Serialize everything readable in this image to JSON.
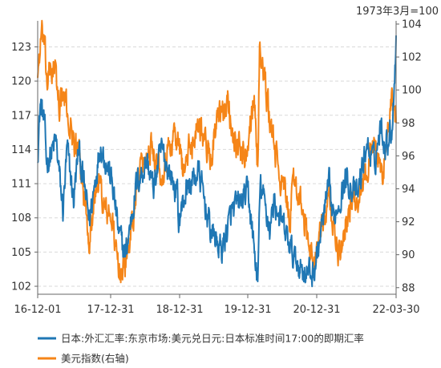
{
  "chart_data": {
    "type": "line",
    "note_top_right": "1973年3月=100",
    "x_ticks": [
      "16-12-01",
      "17-12-31",
      "18-12-31",
      "19-12-31",
      "20-12-31",
      "22-03-30"
    ],
    "x_range": [
      "2016-12-01",
      "2022-03-30"
    ],
    "y_left": {
      "ticks": [
        102,
        105,
        108,
        111,
        114,
        117,
        120,
        123
      ],
      "range": [
        101.3,
        125
      ]
    },
    "y_right": {
      "ticks": [
        88,
        90,
        92,
        94,
        96,
        98,
        100,
        102,
        104
      ],
      "range": [
        87.6,
        104
      ]
    },
    "grid": "horizontal-dashed",
    "legend_position": "bottom",
    "series": [
      {
        "name": "日本:外汇汇率:东京市场:美元兑日元:日本标准时间17:00的即期汇率",
        "axis": "left",
        "color": "#1f77b4",
        "points": [
          [
            "2016-12-01",
            113.8
          ],
          [
            "2016-12-15",
            118.0
          ],
          [
            "2017-01-05",
            116.5
          ],
          [
            "2017-01-18",
            113.0
          ],
          [
            "2017-02-10",
            113.5
          ],
          [
            "2017-03-10",
            114.8
          ],
          [
            "2017-04-17",
            108.6
          ],
          [
            "2017-05-10",
            114.0
          ],
          [
            "2017-06-14",
            109.5
          ],
          [
            "2017-07-10",
            114.0
          ],
          [
            "2017-09-08",
            107.8
          ],
          [
            "2017-11-06",
            114.5
          ],
          [
            "2017-12-15",
            112.5
          ],
          [
            "2018-01-10",
            111.0
          ],
          [
            "2018-02-15",
            106.5
          ],
          [
            "2018-03-23",
            104.7
          ],
          [
            "2018-05-21",
            111.0
          ],
          [
            "2018-07-18",
            113.0
          ],
          [
            "2018-08-20",
            110.5
          ],
          [
            "2018-10-04",
            114.0
          ],
          [
            "2018-12-31",
            110.0
          ],
          [
            "2019-01-03",
            107.5
          ],
          [
            "2019-02-15",
            110.5
          ],
          [
            "2019-04-24",
            112.0
          ],
          [
            "2019-06-25",
            107.0
          ],
          [
            "2019-08-26",
            105.1
          ],
          [
            "2019-10-21",
            108.5
          ],
          [
            "2019-12-13",
            109.5
          ],
          [
            "2020-01-17",
            110.2
          ],
          [
            "2020-03-09",
            102.3
          ],
          [
            "2020-03-23",
            111.0
          ],
          [
            "2020-05-15",
            107.0
          ],
          [
            "2020-06-05",
            109.5
          ],
          [
            "2020-09-21",
            104.5
          ],
          [
            "2020-11-06",
            103.5
          ],
          [
            "2020-12-31",
            103.0
          ],
          [
            "2021-01-15",
            103.8
          ],
          [
            "2021-03-31",
            110.8
          ],
          [
            "2021-04-22",
            107.8
          ],
          [
            "2021-07-01",
            111.5
          ],
          [
            "2021-08-31",
            109.8
          ],
          [
            "2021-10-20",
            114.4
          ],
          [
            "2021-12-03",
            112.8
          ],
          [
            "2022-01-04",
            116.0
          ],
          [
            "2022-02-01",
            114.5
          ],
          [
            "2022-03-10",
            116.0
          ],
          [
            "2022-03-30",
            124.0
          ]
        ]
      },
      {
        "name": "美元指数(右轴)",
        "axis": "right",
        "color": "#f58518",
        "points": [
          [
            "2016-12-01",
            101.0
          ],
          [
            "2016-12-20",
            103.2
          ],
          [
            "2017-01-03",
            103.0
          ],
          [
            "2017-01-20",
            100.5
          ],
          [
            "2017-02-28",
            101.6
          ],
          [
            "2017-03-27",
            99.2
          ],
          [
            "2017-04-25",
            99.5
          ],
          [
            "2017-05-31",
            97.5
          ],
          [
            "2017-07-10",
            96.0
          ],
          [
            "2017-09-08",
            91.2
          ],
          [
            "2017-10-27",
            94.8
          ],
          [
            "2017-11-27",
            92.8
          ],
          [
            "2018-01-10",
            92.0
          ],
          [
            "2018-02-15",
            88.8
          ],
          [
            "2018-03-30",
            89.8
          ],
          [
            "2018-05-29",
            94.5
          ],
          [
            "2018-08-15",
            96.8
          ],
          [
            "2018-10-01",
            95.0
          ],
          [
            "2018-12-14",
            97.5
          ],
          [
            "2019-02-01",
            95.2
          ],
          [
            "2019-04-26",
            98.2
          ],
          [
            "2019-06-25",
            95.8
          ],
          [
            "2019-08-01",
            98.0
          ],
          [
            "2019-09-30",
            99.2
          ],
          [
            "2019-11-01",
            97.2
          ],
          [
            "2019-12-31",
            96.0
          ],
          [
            "2020-02-19",
            99.8
          ],
          [
            "2020-03-09",
            94.8
          ],
          [
            "2020-03-19",
            102.8
          ],
          [
            "2020-04-30",
            99.2
          ],
          [
            "2020-06-15",
            96.0
          ],
          [
            "2020-08-31",
            92.2
          ],
          [
            "2020-09-25",
            94.8
          ],
          [
            "2020-11-30",
            91.2
          ],
          [
            "2021-01-06",
            89.5
          ],
          [
            "2021-03-31",
            93.2
          ],
          [
            "2021-05-25",
            89.8
          ],
          [
            "2021-07-10",
            92.5
          ],
          [
            "2021-09-30",
            94.2
          ],
          [
            "2021-11-24",
            96.8
          ],
          [
            "2022-01-14",
            94.8
          ],
          [
            "2022-03-07",
            99.2
          ],
          [
            "2022-03-30",
            98.0
          ]
        ]
      }
    ]
  }
}
